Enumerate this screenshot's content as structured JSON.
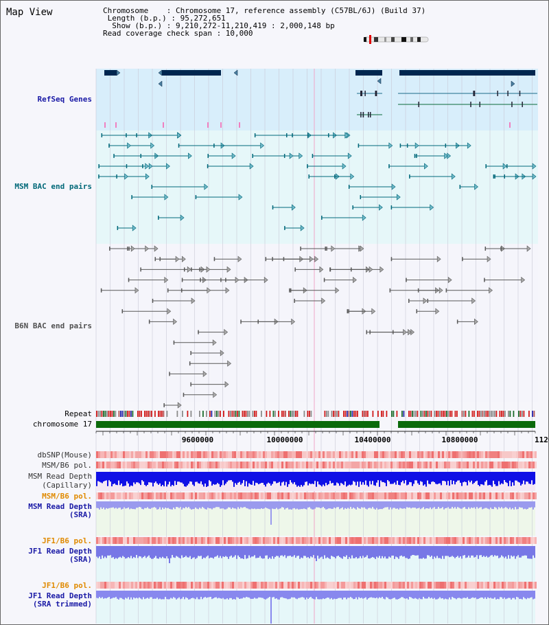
{
  "title": "Map View",
  "info": {
    "chromosome": "Chromosome    : Chromosome 17, reference assembly (C57BL/6J) (Build 37)",
    "length": " Length (b.p.) : 95,272,651",
    "show": "  Show (b.p.) : 9,210,272-11,210,419 : 2,000,148 bp",
    "coverage": "Read coverage check span : 10,000"
  },
  "tracks": {
    "refseq": "RefSeq Genes",
    "msm_bac": "MSM BAC end pairs",
    "b6n_bac": "B6N BAC end pairs",
    "repeat": "Repeat",
    "chromosome": "chromosome 17",
    "dbsnp": "dbSNP(Mouse)",
    "msm_b6_pol": "MSM/B6 pol.",
    "msm_depth_cap": "MSM Read Depth",
    "msm_depth_cap_sub": "(Capillary)",
    "msm_b6_pol2": "MSM/B6 pol.",
    "msm_depth_sra": "MSM Read Depth",
    "msm_depth_sra_sub": "(SRA)",
    "jf1_b6_pol": "JF1/B6 pol.",
    "jf1_depth_sra": "JF1 Read Depth",
    "jf1_depth_sra_sub": "(SRA)",
    "jf1_b6_pol2": "JF1/B6 pol.",
    "jf1_depth_trim": "JF1 Read Depth",
    "jf1_depth_trim_sub": "(SRA trimmed)"
  },
  "ruler": {
    "ticks": [
      "9600000",
      "10000000",
      "10400000",
      "10800000",
      "1120"
    ]
  },
  "colors": {
    "refseq_label": "#1a1aa6",
    "msm_label": "#006878",
    "b6n_label": "#505050",
    "orange_label": "#e08a00",
    "blue_label": "#1a1aa6",
    "gene": "#00264f",
    "msm_pair": "#00687a",
    "b6n_pair": "#585858",
    "chromosome_band": "#0b6a0b"
  }
}
